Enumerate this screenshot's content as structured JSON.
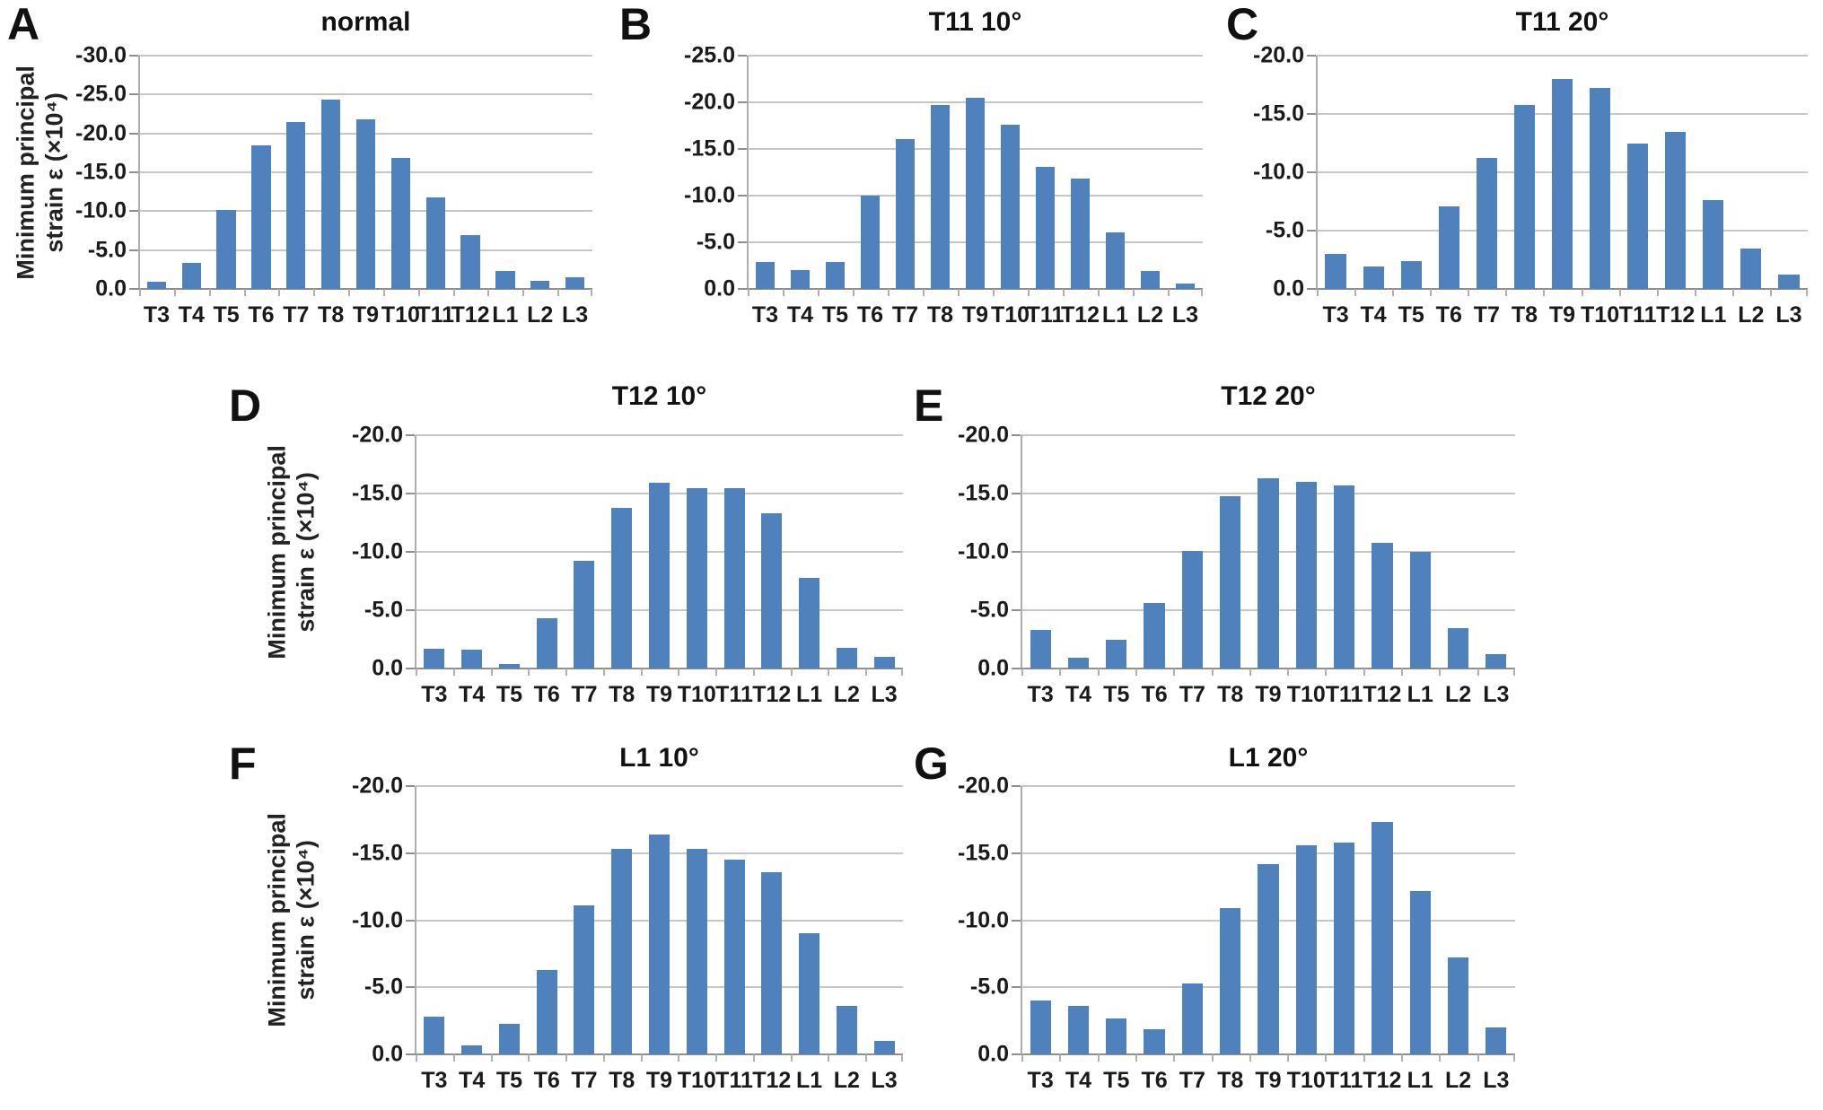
{
  "figure": {
    "ylabel_line1": "Minimum principal",
    "ylabel_line2": "strain ε (×10⁴)",
    "bar_color": "#4f81bd",
    "grid_color": "#c6c6c6",
    "axis_color": "#8f8f8f",
    "text_color": "#1a1a1a",
    "categories": [
      "T3",
      "T4",
      "T5",
      "T6",
      "T7",
      "T8",
      "T9",
      "T10",
      "T11",
      "T12",
      "L1",
      "L2",
      "L3"
    ]
  },
  "chart_data": [
    {
      "type": "bar",
      "panel": "A",
      "title": "normal",
      "categories": [
        "T3",
        "T4",
        "T5",
        "T6",
        "T7",
        "T8",
        "T9",
        "T10",
        "T11",
        "T12",
        "L1",
        "L2",
        "L3"
      ],
      "values": [
        -0.9,
        -3.4,
        -10.1,
        -18.5,
        -21.5,
        -24.3,
        -21.8,
        -16.8,
        -11.8,
        -6.9,
        -2.3,
        -1.0,
        -1.5
      ],
      "ylim": [
        0,
        -30
      ],
      "ytick_step": 5,
      "yticks": [
        "0.0",
        "-5.0",
        "-10.0",
        "-15.0",
        "-20.0",
        "-25.0",
        "-30.0"
      ],
      "ylabel": "Minimum principal strain ε (×10⁴)",
      "has_ylabel": true,
      "grid": true,
      "legend": "none",
      "y_axis_inverted": true
    },
    {
      "type": "bar",
      "panel": "B",
      "title": "T11 10°",
      "categories": [
        "T3",
        "T4",
        "T5",
        "T6",
        "T7",
        "T8",
        "T9",
        "T10",
        "T11",
        "T12",
        "L1",
        "L2",
        "L3"
      ],
      "values": [
        -2.9,
        -2.0,
        -2.9,
        -10.0,
        -16.1,
        -19.7,
        -20.5,
        -17.6,
        -13.1,
        -11.8,
        -6.1,
        -1.9,
        -0.6
      ],
      "ylim": [
        0,
        -25
      ],
      "ytick_step": 5,
      "yticks": [
        "0.0",
        "-5.0",
        "-10.0",
        "-15.0",
        "-20.0",
        "-25.0"
      ],
      "has_ylabel": false,
      "grid": true,
      "legend": "none",
      "y_axis_inverted": true
    },
    {
      "type": "bar",
      "panel": "C",
      "title": "T11 20°",
      "categories": [
        "T3",
        "T4",
        "T5",
        "T6",
        "T7",
        "T8",
        "T9",
        "T10",
        "T11",
        "T12",
        "L1",
        "L2",
        "L3"
      ],
      "values": [
        -3.0,
        -1.9,
        -2.4,
        -7.1,
        -11.2,
        -15.8,
        -18.0,
        -17.2,
        -12.5,
        -13.5,
        -7.6,
        -3.5,
        -1.2
      ],
      "ylim": [
        0,
        -20
      ],
      "ytick_step": 5,
      "yticks": [
        "0.0",
        "-5.0",
        "-10.0",
        "-15.0",
        "-20.0"
      ],
      "has_ylabel": false,
      "grid": true,
      "legend": "none",
      "y_axis_inverted": true
    },
    {
      "type": "bar",
      "panel": "D",
      "title": "T12 10°",
      "categories": [
        "T3",
        "T4",
        "T5",
        "T6",
        "T7",
        "T8",
        "T9",
        "T10",
        "T11",
        "T12",
        "L1",
        "L2",
        "L3"
      ],
      "values": [
        -1.7,
        -1.6,
        -0.4,
        -4.3,
        -9.2,
        -13.8,
        -15.9,
        -15.5,
        -15.5,
        -13.3,
        -7.8,
        -1.8,
        -1.0
      ],
      "ylim": [
        0,
        -20
      ],
      "ytick_step": 5,
      "yticks": [
        "0.0",
        "-5.0",
        "-10.0",
        "-15.0",
        "-20.0"
      ],
      "ylabel": "Minimum principal strain ε (×10⁴)",
      "has_ylabel": true,
      "grid": true,
      "legend": "none",
      "y_axis_inverted": true
    },
    {
      "type": "bar",
      "panel": "E",
      "title": "T12 20°",
      "categories": [
        "T3",
        "T4",
        "T5",
        "T6",
        "T7",
        "T8",
        "T9",
        "T10",
        "T11",
        "T12",
        "L1",
        "L2",
        "L3"
      ],
      "values": [
        -3.3,
        -0.9,
        -2.5,
        -5.6,
        -10.1,
        -14.8,
        -16.3,
        -16.0,
        -15.7,
        -10.8,
        -10.0,
        -3.5,
        -1.2
      ],
      "ylim": [
        0,
        -20
      ],
      "ytick_step": 5,
      "yticks": [
        "0.0",
        "-5.0",
        "-10.0",
        "-15.0",
        "-20.0"
      ],
      "has_ylabel": false,
      "grid": true,
      "legend": "none",
      "y_axis_inverted": true
    },
    {
      "type": "bar",
      "panel": "F",
      "title": "L1 10°",
      "categories": [
        "T3",
        "T4",
        "T5",
        "T6",
        "T7",
        "T8",
        "T9",
        "T10",
        "T11",
        "T12",
        "L1",
        "L2",
        "L3"
      ],
      "values": [
        -2.8,
        -0.7,
        -2.3,
        -6.3,
        -11.1,
        -15.3,
        -16.4,
        -15.3,
        -14.5,
        -13.6,
        -9.0,
        -3.6,
        -1.0
      ],
      "ylim": [
        0,
        -20
      ],
      "ytick_step": 5,
      "yticks": [
        "0.0",
        "-5.0",
        "-10.0",
        "-15.0",
        "-20.0"
      ],
      "ylabel": "Minimum principal strain ε (×10⁴)",
      "has_ylabel": true,
      "grid": true,
      "legend": "none",
      "y_axis_inverted": true
    },
    {
      "type": "bar",
      "panel": "G",
      "title": "L1 20°",
      "categories": [
        "T3",
        "T4",
        "T5",
        "T6",
        "T7",
        "T8",
        "T9",
        "T10",
        "T11",
        "T12",
        "L1",
        "L2",
        "L3"
      ],
      "values": [
        -4.0,
        -3.6,
        -2.7,
        -1.9,
        -5.3,
        -10.9,
        -14.2,
        -15.6,
        -15.8,
        -17.3,
        -12.2,
        -7.2,
        -2.0
      ],
      "ylim": [
        0,
        -20
      ],
      "ytick_step": 5,
      "yticks": [
        "0.0",
        "-5.0",
        "-10.0",
        "-15.0",
        "-20.0"
      ],
      "has_ylabel": false,
      "grid": true,
      "legend": "none",
      "y_axis_inverted": true
    }
  ]
}
